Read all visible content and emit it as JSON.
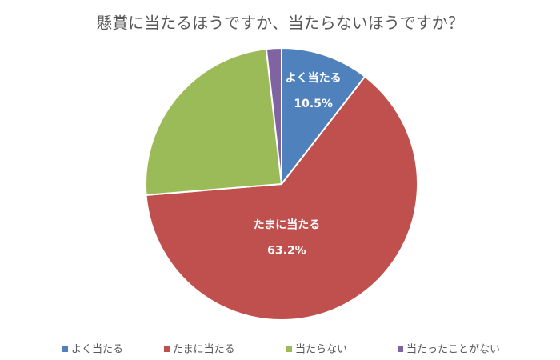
{
  "chart_data": {
    "type": "pie",
    "title": "懸賞に当たるほうですか、当たらないほうですか？",
    "categories": [
      "よく当たる",
      "たまに当たる",
      "当たらない",
      "当たったことがない"
    ],
    "values": [
      10.5,
      63.2,
      24.5,
      1.8
    ],
    "value_labels": [
      "10.5%",
      "63.2%",
      null,
      null
    ],
    "colors": [
      "#4f81bd",
      "#c0504d",
      "#9bbb59",
      "#8064a2"
    ],
    "legend": "bottom"
  }
}
